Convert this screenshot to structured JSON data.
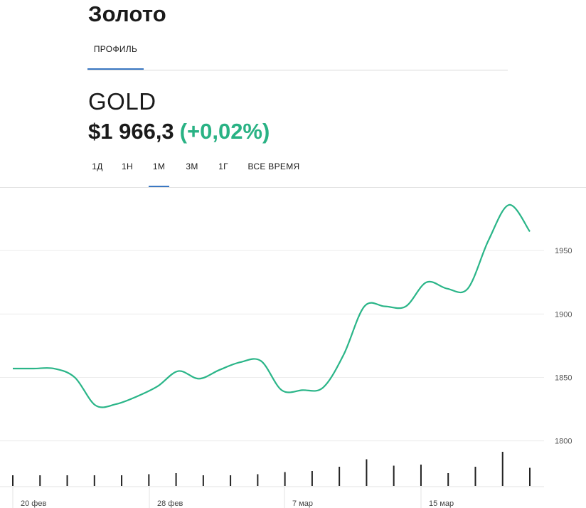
{
  "header": {
    "title": "Золото",
    "tabs": [
      {
        "label": "ПРОФИЛЬ",
        "active": true
      }
    ]
  },
  "quote": {
    "ticker": "GOLD",
    "price": "$1 966,3",
    "change": "(+0,02%)",
    "change_color": "#29b284"
  },
  "ranges": [
    {
      "label": "1Д",
      "active": false
    },
    {
      "label": "1Н",
      "active": false
    },
    {
      "label": "1М",
      "active": true
    },
    {
      "label": "3М",
      "active": false
    },
    {
      "label": "1Г",
      "active": false
    },
    {
      "label": "ВСЕ ВРЕМЯ",
      "active": false
    }
  ],
  "chart_data": {
    "type": "line",
    "series": [
      {
        "values": [
          1857,
          1857,
          1857,
          1850,
          1828,
          1829,
          1835,
          1843,
          1855,
          1849,
          1856,
          1862,
          1863,
          1840,
          1840,
          1842,
          1868,
          1906,
          1906,
          1906,
          1925,
          1920,
          1920,
          1958,
          1986,
          1965
        ]
      }
    ],
    "volume": [
      1,
      1,
      1,
      1,
      1,
      1.1,
      1.2,
      1,
      1,
      1.1,
      1.3,
      1.4,
      1.8,
      2.5,
      1.9,
      2,
      1.2,
      1.8,
      3.2,
      1.7
    ],
    "ylim": [
      1783,
      2000
    ],
    "yticks": [
      1800,
      1850,
      1900,
      1950
    ],
    "xticks": [
      "20 фев",
      "28 фев",
      "7 мар",
      "15 мар"
    ],
    "accent_color": "#2ab588",
    "grid": true
  }
}
